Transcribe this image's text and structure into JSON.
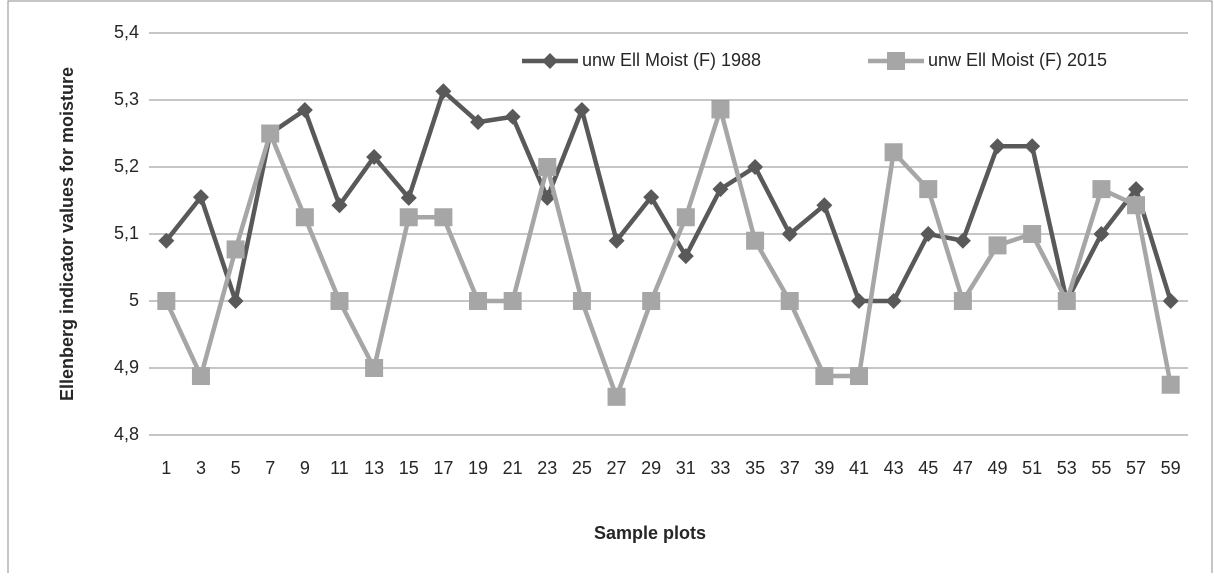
{
  "chart_data": {
    "type": "line",
    "x_label": "Sample plots",
    "y_label": "Ellenberg indicator values for moisture",
    "categories": [
      "1",
      "3",
      "5",
      "7",
      "9",
      "11",
      "13",
      "15",
      "17",
      "19",
      "21",
      "23",
      "25",
      "27",
      "29",
      "31",
      "33",
      "35",
      "37",
      "39",
      "41",
      "43",
      "45",
      "47",
      "49",
      "51",
      "53",
      "55",
      "57",
      "59"
    ],
    "series": [
      {
        "name": "unw Ell Moist (F) 1988",
        "color": "#595959",
        "marker": "diamond",
        "values": [
          5.09,
          5.155,
          5.0,
          5.25,
          5.285,
          5.143,
          5.215,
          5.154,
          5.313,
          5.267,
          5.275,
          5.154,
          5.285,
          5.09,
          5.155,
          5.067,
          5.167,
          5.2,
          5.1,
          5.143,
          5.0,
          5.0,
          5.1,
          5.09,
          5.231,
          5.231,
          5.0,
          5.1,
          5.167,
          5.0
        ]
      },
      {
        "name": "unw Ell Moist (F) 2015",
        "color": "#a6a6a6",
        "marker": "square",
        "values": [
          5.0,
          4.888,
          5.077,
          5.25,
          5.125,
          5.0,
          4.9,
          5.125,
          5.125,
          5.0,
          5.0,
          5.2,
          5.0,
          4.857,
          5.0,
          5.125,
          5.286,
          5.09,
          5.0,
          4.888,
          4.888,
          5.222,
          5.167,
          5.0,
          5.083,
          5.1,
          5.0,
          5.167,
          5.143,
          4.875
        ]
      }
    ],
    "ylim": [
      4.8,
      5.4
    ],
    "yticks": [
      {
        "value": 4.8,
        "label": "4,8"
      },
      {
        "value": 4.9,
        "label": "4,9"
      },
      5,
      {
        "value": 5.1,
        "label": "5,1"
      },
      {
        "value": 5.2,
        "label": "5,2"
      },
      {
        "value": 5.3,
        "label": "5,3"
      },
      {
        "value": 5.4,
        "label": "5,4"
      }
    ],
    "grid": true,
    "legend": "top-right"
  }
}
